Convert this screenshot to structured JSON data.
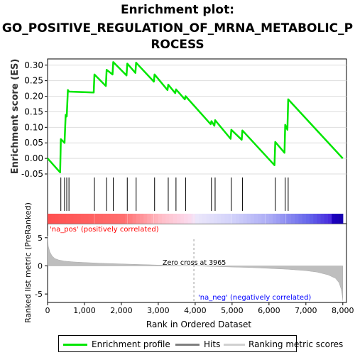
{
  "title_lines": [
    "Enrichment plot:",
    "GO_POSITIVE_REGULATION_OF_MRNA_METABOLIC_P",
    "ROCESS"
  ],
  "colors": {
    "es": "#00e600",
    "hits": "#000000",
    "metric": "#bebebe",
    "pos": "#ff0000",
    "neg": "#0000ff"
  },
  "chart_data": [
    {
      "type": "line",
      "name": "enrichment_profile",
      "ylabel": "Enrichment score (ES)",
      "ylim": [
        -0.05,
        0.32
      ],
      "yticks": [
        -0.05,
        0.0,
        0.05,
        0.1,
        0.15,
        0.2,
        0.25,
        0.3
      ],
      "ytick_labels": [
        "-0.05",
        "0.00",
        "0.05",
        "0.10",
        "0.15",
        "0.20",
        "0.25",
        "0.30"
      ],
      "xlim": [
        0,
        8100
      ],
      "x": [
        0,
        340,
        360,
        460,
        490,
        520,
        550,
        580,
        1250,
        1270,
        1580,
        1600,
        1760,
        1780,
        2140,
        2160,
        2380,
        2400,
        2880,
        2900,
        3250,
        3270,
        3460,
        3480,
        3720,
        3740,
        4420,
        4440,
        4520,
        4540,
        4960,
        4980,
        5260,
        5280,
        6150,
        6170,
        6420,
        6440,
        6500,
        6520,
        8000
      ],
      "y": [
        0.0,
        -0.045,
        0.062,
        0.05,
        0.14,
        0.135,
        0.22,
        0.215,
        0.212,
        0.27,
        0.233,
        0.285,
        0.27,
        0.31,
        0.267,
        0.305,
        0.275,
        0.308,
        0.247,
        0.27,
        0.22,
        0.237,
        0.21,
        0.222,
        0.19,
        0.2,
        0.11,
        0.12,
        0.105,
        0.123,
        0.063,
        0.092,
        0.06,
        0.09,
        -0.022,
        0.053,
        0.018,
        0.108,
        0.092,
        0.19,
        0.0
      ]
    },
    {
      "type": "scatter",
      "name": "hits",
      "x": [
        360,
        460,
        520,
        580,
        1270,
        1600,
        1780,
        2160,
        2400,
        2900,
        3270,
        3480,
        3740,
        4440,
        4540,
        4980,
        5280,
        6170,
        6440,
        6520
      ]
    },
    {
      "type": "area",
      "name": "ranked_list_metric",
      "xlabel": "Rank in Ordered Dataset",
      "ylabel": "Ranked list metric (PreRanked)",
      "ylim": [
        -6.5,
        7.5
      ],
      "yticks": [
        -5,
        0,
        5
      ],
      "ytick_labels": [
        "-5",
        "0",
        "5"
      ],
      "xlim": [
        0,
        8100
      ],
      "xticks": [
        0,
        1000,
        2000,
        3000,
        4000,
        5000,
        6000,
        7000,
        8000
      ],
      "xtick_labels": [
        "0",
        "1,000",
        "2,000",
        "3,000",
        "4,000",
        "5,000",
        "6,000",
        "7,000",
        "8,000"
      ],
      "x": [
        0,
        20,
        60,
        120,
        200,
        300,
        450,
        700,
        1000,
        1500,
        2000,
        2500,
        3000,
        3500,
        3965,
        4500,
        5000,
        5500,
        6000,
        6500,
        7000,
        7300,
        7600,
        7800,
        7900,
        7960,
        7990,
        8000
      ],
      "y": [
        5.3,
        3.5,
        2.5,
        1.8,
        1.3,
        1.05,
        0.85,
        0.7,
        0.6,
        0.45,
        0.35,
        0.25,
        0.15,
        0.05,
        0.0,
        -0.1,
        -0.2,
        -0.3,
        -0.45,
        -0.6,
        -0.85,
        -1.1,
        -1.6,
        -2.2,
        -3.0,
        -4.2,
        -5.5,
        -6.2
      ],
      "zero_cross_label": "Zero cross at 3965",
      "pos_label": "'na_pos' (positively correlated)",
      "neg_label": "'na_neg' (negatively correlated)"
    }
  ],
  "legend": {
    "es_label": "Enrichment profile",
    "hits_label": "Hits",
    "metric_label": "Ranking metric scores"
  }
}
